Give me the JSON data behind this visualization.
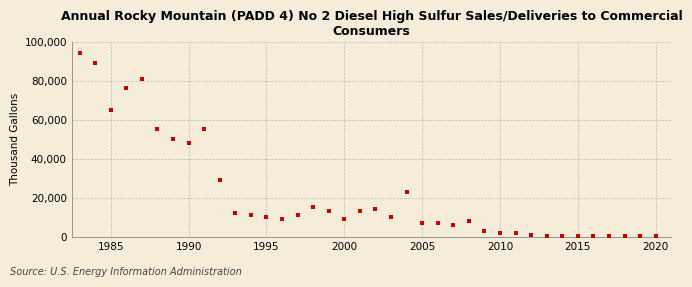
{
  "title": "Annual Rocky Mountain (PADD 4) No 2 Diesel High Sulfur Sales/Deliveries to Commercial\nConsumers",
  "ylabel": "Thousand Gallons",
  "source": "Source: U.S. Energy Information Administration",
  "background_color": "#f5edda",
  "marker_color": "#cc0000",
  "years": [
    1983,
    1984,
    1985,
    1986,
    1987,
    1988,
    1989,
    1990,
    1991,
    1992,
    1993,
    1994,
    1995,
    1996,
    1997,
    1998,
    1999,
    2000,
    2001,
    2002,
    2003,
    2004,
    2005,
    2006,
    2007,
    2008,
    2009,
    2010,
    2011,
    2012,
    2013,
    2014,
    2015,
    2016,
    2017,
    2018,
    2019,
    2020
  ],
  "values": [
    94000,
    89000,
    65000,
    76000,
    81000,
    55000,
    50000,
    48000,
    55000,
    29000,
    12000,
    11000,
    10000,
    9000,
    11000,
    15000,
    13000,
    9000,
    13000,
    14000,
    10000,
    23000,
    7000,
    7000,
    6000,
    8000,
    3000,
    2000,
    2000,
    1000,
    500,
    500,
    300,
    300,
    300,
    300,
    300,
    300
  ],
  "xlim": [
    1982.5,
    2021
  ],
  "ylim": [
    0,
    100000
  ],
  "yticks": [
    0,
    20000,
    40000,
    60000,
    80000,
    100000
  ],
  "ytick_labels": [
    "0",
    "20,000",
    "40,000",
    "60,000",
    "80,000",
    "100,000"
  ],
  "xticks": [
    1985,
    1990,
    1995,
    2000,
    2005,
    2010,
    2015,
    2020
  ],
  "grid_color": "#bbbbbb",
  "title_fontsize": 9,
  "axis_fontsize": 7.5,
  "source_fontsize": 7
}
